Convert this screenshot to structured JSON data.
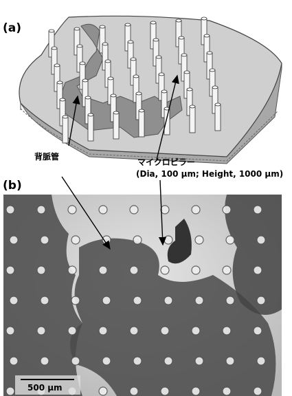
{
  "panel_a": {
    "label": "(a)",
    "vessel_label": "背脈管",
    "pillar_label": "マイクロピラー",
    "pillar_spec": "(Dia, 100 μm; Height, 1000 μm)"
  },
  "panel_b": {
    "label": "(b)",
    "scale_bar": "500 μm"
  }
}
